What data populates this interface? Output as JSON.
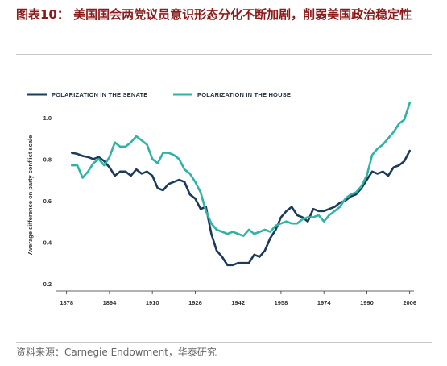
{
  "figure": {
    "title": "图表10： 美国国会两党议员意识形态分化不断加剧，削弱美国政治稳定性",
    "source": "资料来源：Carnegie Endowment，华泰研究"
  },
  "chart_data": {
    "type": "line",
    "ylabel": "Average difference on party conflict scale",
    "xlabel": "",
    "xlim": [
      1876,
      2007
    ],
    "ylim": [
      0.2,
      1.1
    ],
    "x_ticks": [
      "1878",
      "1894",
      "1910",
      "1926",
      "1942",
      "1958",
      "1974",
      "1990",
      "2006"
    ],
    "y_ticks": [
      "0.2",
      "0.4",
      "0.6",
      "0.8",
      "1.0"
    ],
    "legend_position": "top-left",
    "grid": false,
    "series": [
      {
        "name": "POLARIZATION IN THE SENATE",
        "color": "#1b3a5c",
        "x": [
          1880,
          1882,
          1884,
          1886,
          1888,
          1890,
          1892,
          1894,
          1896,
          1898,
          1900,
          1902,
          1904,
          1906,
          1908,
          1910,
          1912,
          1914,
          1916,
          1918,
          1920,
          1922,
          1924,
          1926,
          1928,
          1930,
          1932,
          1934,
          1936,
          1938,
          1940,
          1942,
          1944,
          1946,
          1948,
          1950,
          1952,
          1954,
          1956,
          1958,
          1960,
          1962,
          1964,
          1966,
          1968,
          1970,
          1972,
          1974,
          1976,
          1978,
          1980,
          1982,
          1984,
          1986,
          1988,
          1990,
          1992,
          1994,
          1996,
          1998,
          2000,
          2002,
          2004,
          2006
        ],
        "values": [
          0.83,
          0.825,
          0.815,
          0.81,
          0.8,
          0.81,
          0.79,
          0.76,
          0.72,
          0.74,
          0.74,
          0.72,
          0.75,
          0.73,
          0.74,
          0.72,
          0.66,
          0.65,
          0.68,
          0.69,
          0.7,
          0.69,
          0.63,
          0.61,
          0.56,
          0.57,
          0.44,
          0.36,
          0.33,
          0.29,
          0.29,
          0.3,
          0.3,
          0.3,
          0.34,
          0.33,
          0.36,
          0.42,
          0.46,
          0.52,
          0.55,
          0.57,
          0.53,
          0.52,
          0.5,
          0.56,
          0.55,
          0.55,
          0.56,
          0.57,
          0.59,
          0.6,
          0.62,
          0.63,
          0.66,
          0.7,
          0.74,
          0.73,
          0.74,
          0.72,
          0.76,
          0.77,
          0.79,
          0.84
        ]
      },
      {
        "name": "POLARIZATION IN THE HOUSE",
        "color": "#2fb3a4",
        "x": [
          1880,
          1882,
          1884,
          1886,
          1888,
          1890,
          1892,
          1894,
          1896,
          1898,
          1900,
          1902,
          1904,
          1906,
          1908,
          1910,
          1912,
          1914,
          1916,
          1918,
          1920,
          1922,
          1924,
          1926,
          1928,
          1930,
          1932,
          1934,
          1936,
          1938,
          1940,
          1942,
          1944,
          1946,
          1948,
          1950,
          1952,
          1954,
          1956,
          1958,
          1960,
          1962,
          1964,
          1966,
          1968,
          1970,
          1972,
          1974,
          1976,
          1978,
          1980,
          1982,
          1984,
          1986,
          1988,
          1990,
          1992,
          1994,
          1996,
          1998,
          2000,
          2002,
          2004,
          2006
        ],
        "values": [
          0.77,
          0.77,
          0.71,
          0.74,
          0.78,
          0.8,
          0.77,
          0.81,
          0.88,
          0.86,
          0.86,
          0.88,
          0.91,
          0.89,
          0.87,
          0.8,
          0.78,
          0.83,
          0.83,
          0.82,
          0.8,
          0.75,
          0.73,
          0.69,
          0.64,
          0.55,
          0.49,
          0.46,
          0.45,
          0.44,
          0.45,
          0.44,
          0.43,
          0.46,
          0.44,
          0.45,
          0.46,
          0.45,
          0.48,
          0.49,
          0.5,
          0.49,
          0.49,
          0.51,
          0.52,
          0.52,
          0.53,
          0.5,
          0.53,
          0.55,
          0.57,
          0.61,
          0.63,
          0.64,
          0.67,
          0.72,
          0.82,
          0.85,
          0.87,
          0.9,
          0.93,
          0.97,
          0.99,
          1.07
        ]
      }
    ]
  }
}
